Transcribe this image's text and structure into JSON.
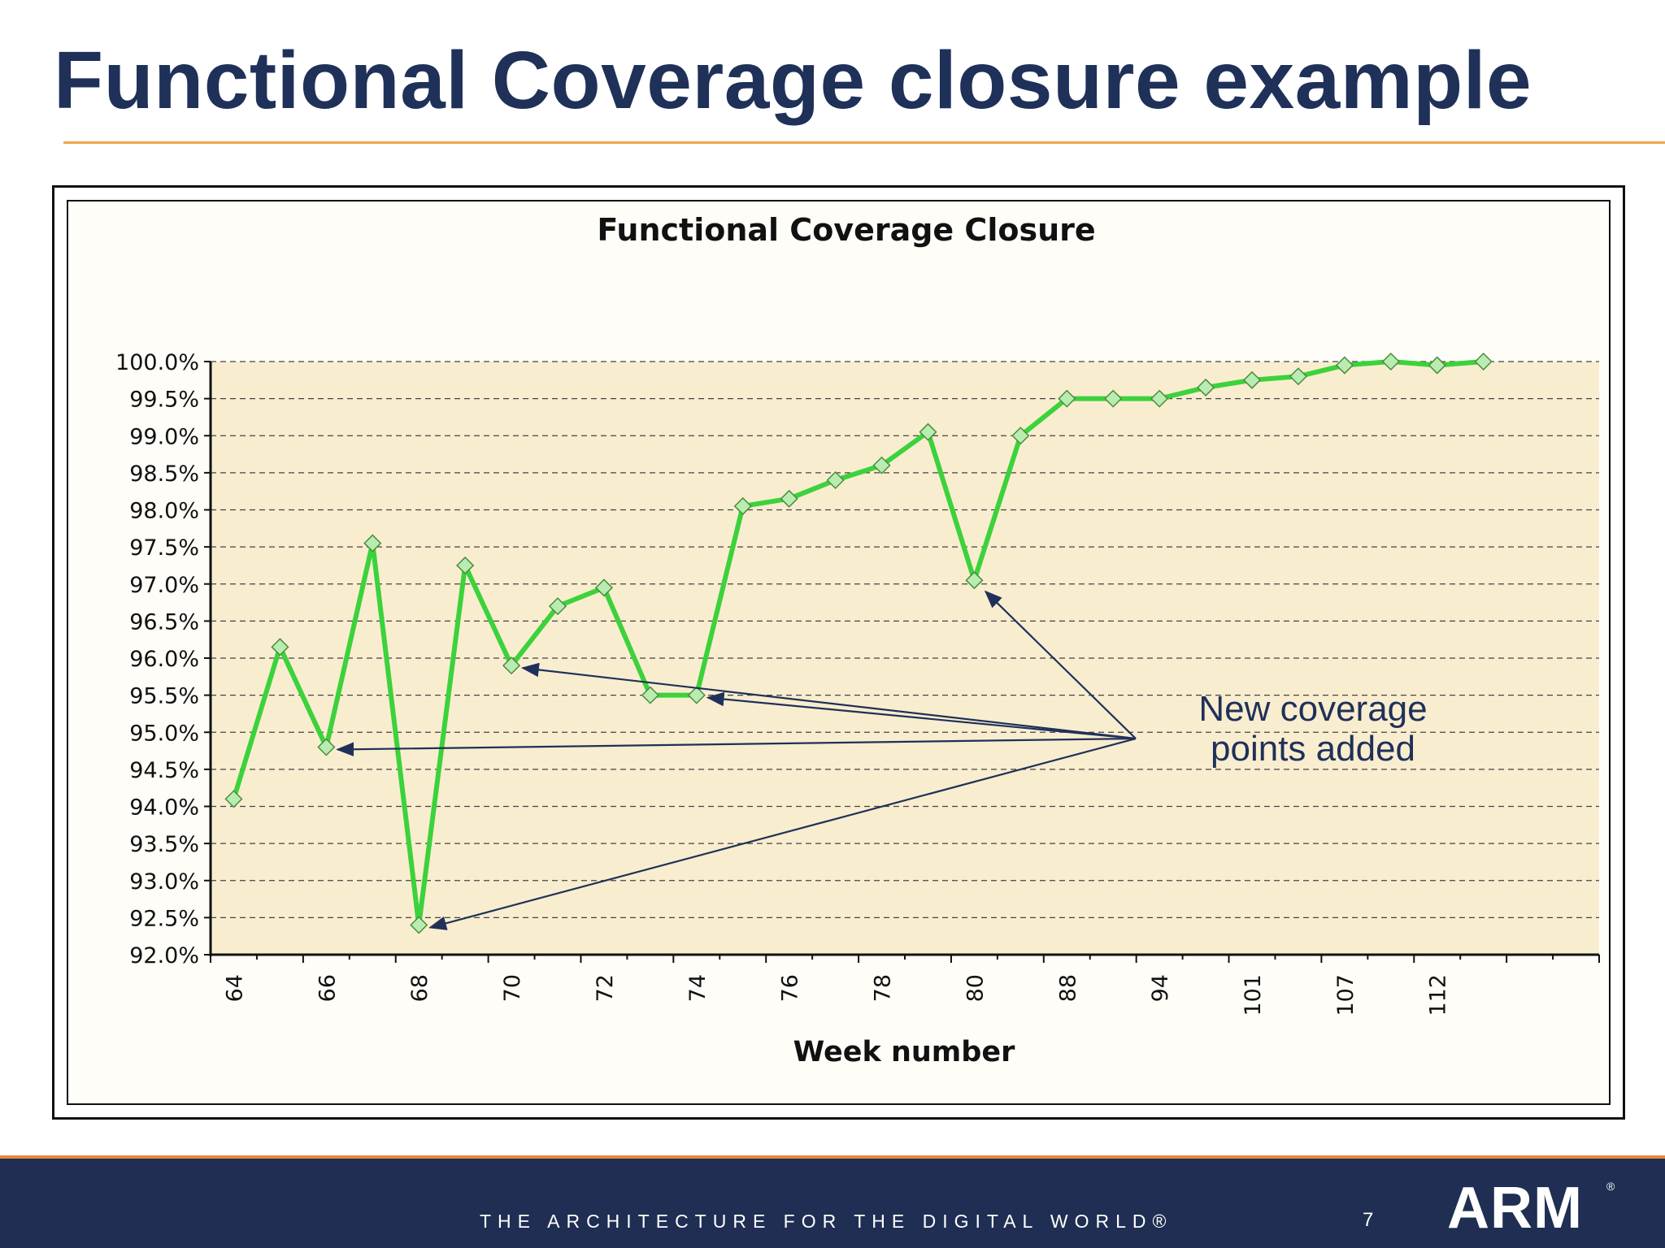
{
  "slide": {
    "title": "Functional Coverage closure example",
    "tagline": "THE ARCHITECTURE FOR THE DIGITAL WORLD®",
    "page_number": "7",
    "logo_text": "ARM",
    "logo_mark": "®"
  },
  "chart_data": {
    "type": "line",
    "title": "Functional Coverage Closure",
    "xlabel": "Week number",
    "ylabel": "",
    "ylim": [
      92.0,
      100.0
    ],
    "ytick_step": 0.5,
    "ytick_labels": [
      "92.0%",
      "92.5%",
      "93.0%",
      "93.5%",
      "94.0%",
      "94.5%",
      "95.0%",
      "95.5%",
      "96.0%",
      "96.5%",
      "97.0%",
      "97.5%",
      "98.0%",
      "98.5%",
      "99.0%",
      "99.5%",
      "100.0%"
    ],
    "xtick_labels": [
      "64",
      "66",
      "68",
      "70",
      "72",
      "74",
      "76",
      "78",
      "80",
      "88",
      "94",
      "101",
      "107",
      "112"
    ],
    "x_slot_count": 30,
    "grid": true,
    "series": [
      {
        "color": "#3cd23c",
        "marker": "diamond",
        "values": [
          94.1,
          96.15,
          94.8,
          97.55,
          92.4,
          97.25,
          95.9,
          96.7,
          96.95,
          95.5,
          95.5,
          98.05,
          98.15,
          98.4,
          98.6,
          99.05,
          97.05,
          99.0,
          99.5,
          99.5,
          99.5,
          99.65,
          99.75,
          99.8,
          99.95,
          100.0,
          99.95,
          100.0
        ]
      }
    ],
    "annotation": {
      "text_line1": "New coverage",
      "text_line2": "points added",
      "color": "#1f3159",
      "target_point_indices": [
        2,
        4,
        6,
        10,
        16
      ]
    }
  }
}
